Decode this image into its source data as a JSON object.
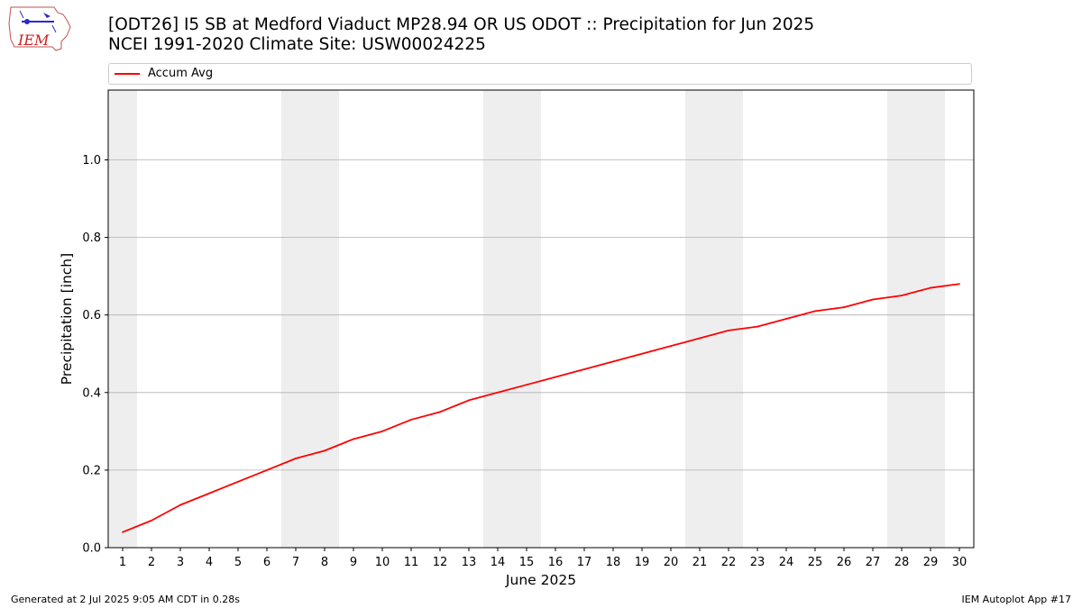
{
  "logo": {
    "text": "IEM"
  },
  "title": {
    "line1": "[ODT26] I5 SB at Medford Viaduct MP28.94 OR US ODOT :: Precipitation for Jun 2025",
    "line2": "NCEI 1991-2020 Climate Site: USW00024225"
  },
  "footer": {
    "left": "Generated at 2 Jul 2025 9:05 AM CDT in 0.28s",
    "right": "IEM Autoplot App #17"
  },
  "colors": {
    "series": "#ff0000",
    "weekend_band": "#eeeeee",
    "grid": "#b0b0b0"
  },
  "chart_data": {
    "type": "line",
    "xlabel": "June 2025",
    "ylabel": "Precipitation [inch]",
    "xlim": [
      0.5,
      30.5
    ],
    "ylim": [
      0,
      1.18
    ],
    "yticks": [
      0.0,
      0.2,
      0.4,
      0.6,
      0.8,
      1.0
    ],
    "ytick_labels": [
      "0.0",
      "0.2",
      "0.4",
      "0.6",
      "0.8",
      "1.0"
    ],
    "x": [
      1,
      2,
      3,
      4,
      5,
      6,
      7,
      8,
      9,
      10,
      11,
      12,
      13,
      14,
      15,
      16,
      17,
      18,
      19,
      20,
      21,
      22,
      23,
      24,
      25,
      26,
      27,
      28,
      29,
      30
    ],
    "xtick_labels": [
      "1",
      "2",
      "3",
      "4",
      "5",
      "6",
      "7",
      "8",
      "9",
      "10",
      "11",
      "12",
      "13",
      "14",
      "15",
      "16",
      "17",
      "18",
      "19",
      "20",
      "21",
      "22",
      "23",
      "24",
      "25",
      "26",
      "27",
      "28",
      "29",
      "30"
    ],
    "grid": "y",
    "legend_position": "top",
    "weekend_bands": [
      [
        0.5,
        1.5
      ],
      [
        6.5,
        8.5
      ],
      [
        13.5,
        15.5
      ],
      [
        20.5,
        22.5
      ],
      [
        27.5,
        29.5
      ]
    ],
    "series": [
      {
        "name": "Accum Avg",
        "color": "#ff0000",
        "values": [
          0.04,
          0.07,
          0.11,
          0.14,
          0.17,
          0.2,
          0.23,
          0.25,
          0.28,
          0.3,
          0.33,
          0.35,
          0.38,
          0.4,
          0.42,
          0.44,
          0.46,
          0.48,
          0.5,
          0.52,
          0.54,
          0.56,
          0.57,
          0.59,
          0.61,
          0.62,
          0.64,
          0.65,
          0.67,
          0.68
        ]
      }
    ]
  }
}
